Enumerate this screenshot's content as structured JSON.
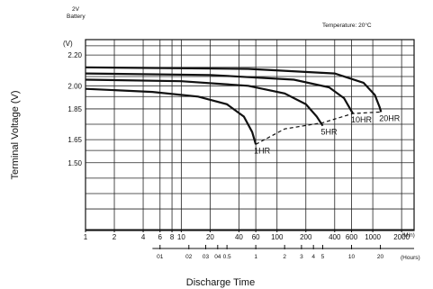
{
  "chart_data": {
    "type": "line",
    "battery_label_line1": "2V",
    "battery_label_line2": "Battery",
    "temperature_label": "Temperature: 20°C",
    "ylabel": "Terminal Voltage (V)",
    "y_unit": "(V)",
    "xlabel": "Discharge Time",
    "y_ticks": [
      "2.20",
      "2.00",
      "1.85",
      "1.65",
      "1.50"
    ],
    "y_tick_values": [
      2.2,
      2.0,
      1.85,
      1.65,
      1.5
    ],
    "ylim": [
      1.06,
      2.3
    ],
    "x_scale": "log",
    "xlim_minutes": [
      1,
      2700
    ],
    "x_minute_ticks": [
      {
        "label": "1",
        "min": 1
      },
      {
        "label": "2",
        "min": 2
      },
      {
        "label": "4",
        "min": 4
      },
      {
        "label": "6",
        "min": 6
      },
      {
        "label": "8",
        "min": 8
      },
      {
        "label": "10",
        "min": 10
      },
      {
        "label": "20",
        "min": 20
      },
      {
        "label": "40",
        "min": 40
      },
      {
        "label": "60",
        "min": 60
      },
      {
        "label": "100",
        "min": 100
      },
      {
        "label": "200",
        "min": 200
      },
      {
        "label": "400",
        "min": 400
      },
      {
        "label": "600",
        "min": 600
      },
      {
        "label": "1000",
        "min": 1000
      },
      {
        "label": "2000",
        "min": 2000
      }
    ],
    "x_minute_unit": "(Min)",
    "x_hour_ticks": [
      {
        "label": "01",
        "min": 6
      },
      {
        "label": "02",
        "min": 12
      },
      {
        "label": "03",
        "min": 18
      },
      {
        "label": "04",
        "min": 24
      },
      {
        "label": "0.5",
        "min": 30
      },
      {
        "label": "1",
        "min": 60
      },
      {
        "label": "2",
        "min": 120
      },
      {
        "label": "3",
        "min": 180
      },
      {
        "label": "4",
        "min": 240
      },
      {
        "label": "5",
        "min": 300
      },
      {
        "label": "10",
        "min": 600
      },
      {
        "label": "20",
        "min": 1200
      }
    ],
    "x_hour_unit": "(Hours)",
    "series": [
      {
        "name": "1HR",
        "points": [
          [
            1,
            1.98
          ],
          [
            5,
            1.96
          ],
          [
            15,
            1.93
          ],
          [
            30,
            1.88
          ],
          [
            45,
            1.8
          ],
          [
            55,
            1.7
          ],
          [
            60,
            1.62
          ]
        ]
      },
      {
        "name": "5HR",
        "points": [
          [
            1,
            2.04
          ],
          [
            10,
            2.03
          ],
          [
            50,
            2.0
          ],
          [
            120,
            1.95
          ],
          [
            200,
            1.88
          ],
          [
            260,
            1.8
          ],
          [
            300,
            1.74
          ]
        ]
      },
      {
        "name": "10HR",
        "points": [
          [
            1,
            2.08
          ],
          [
            20,
            2.07
          ],
          [
            150,
            2.04
          ],
          [
            350,
            1.99
          ],
          [
            500,
            1.92
          ],
          [
            580,
            1.85
          ],
          [
            620,
            1.82
          ]
        ]
      },
      {
        "name": "20HR",
        "points": [
          [
            1,
            2.12
          ],
          [
            50,
            2.11
          ],
          [
            400,
            2.08
          ],
          [
            800,
            2.02
          ],
          [
            1050,
            1.94
          ],
          [
            1180,
            1.86
          ],
          [
            1220,
            1.83
          ]
        ]
      }
    ],
    "end_voltage_line": {
      "points": [
        [
          60,
          1.62
        ],
        [
          120,
          1.72
        ],
        [
          300,
          1.76
        ],
        [
          620,
          1.82
        ],
        [
          1220,
          1.83
        ]
      ]
    },
    "grid": true
  }
}
